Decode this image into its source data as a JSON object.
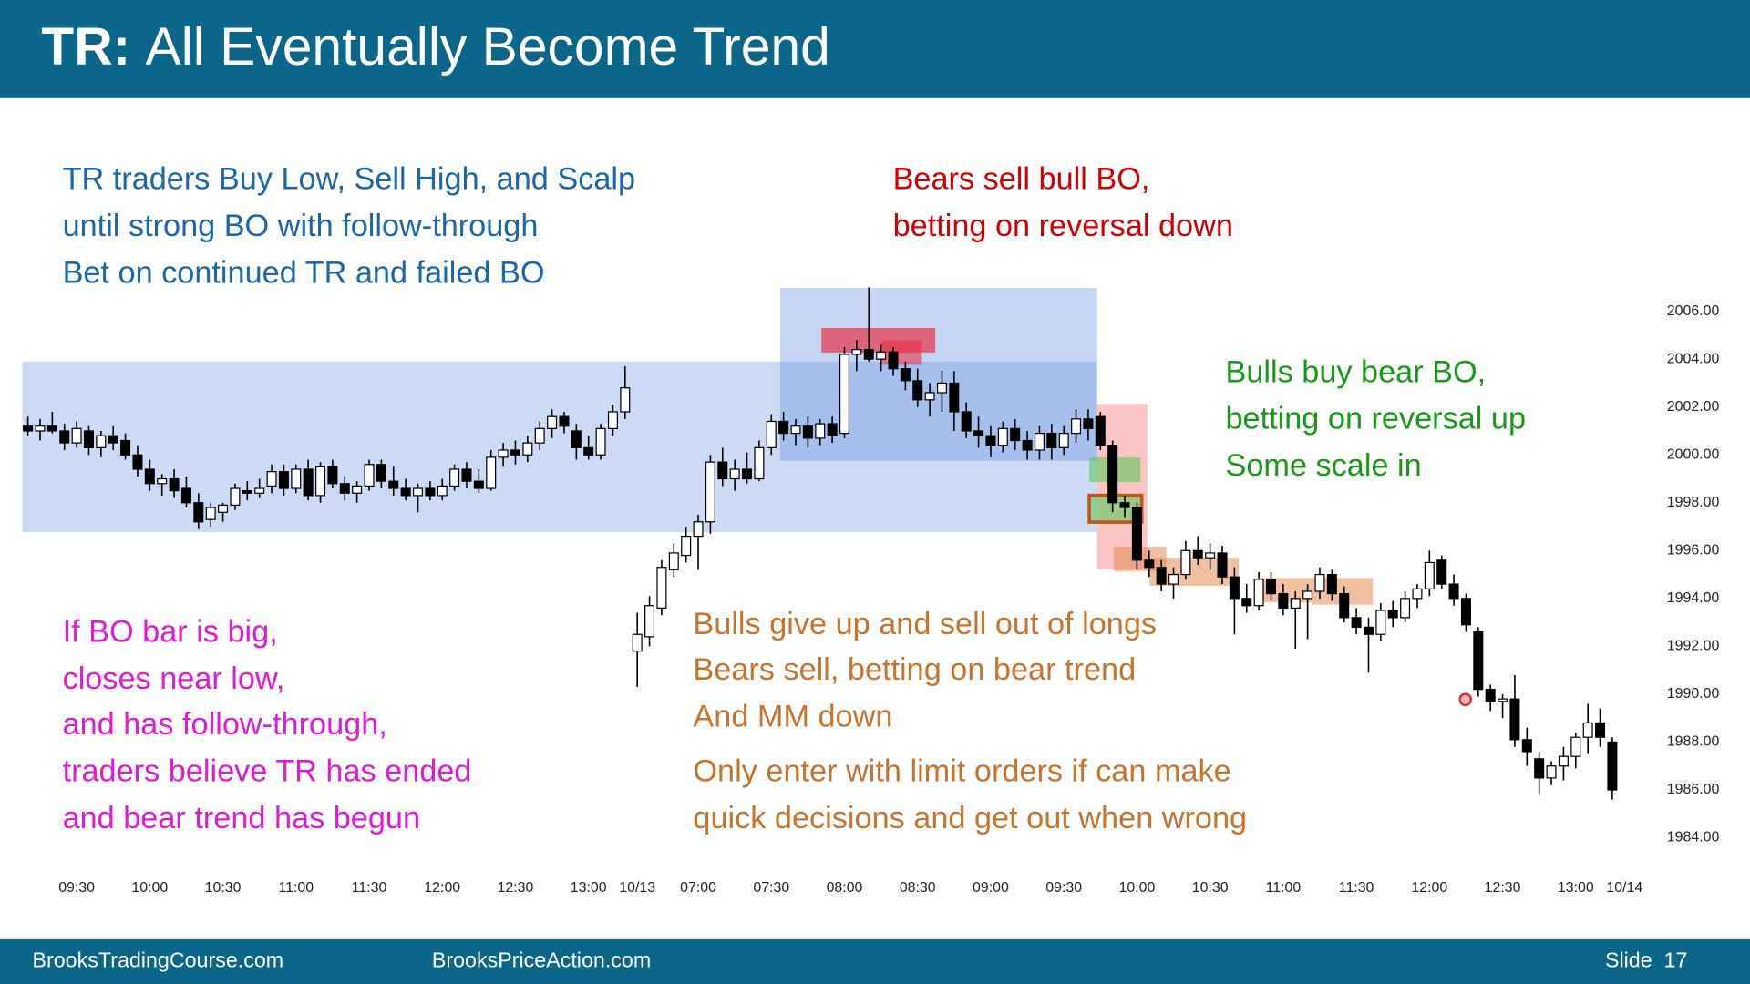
{
  "header": {
    "title_prefix": "TR:",
    "title": "All Eventually Become Trend"
  },
  "annotations": {
    "range_traders": [
      "TR traders Buy Low, Sell High, and Scalp",
      "until strong BO with follow-through",
      "Bet on continued TR and failed BO"
    ],
    "bears": [
      "Bears sell bull BO,",
      "betting on reversal down"
    ],
    "bulls": [
      "Bulls buy bear BO,",
      "betting on reversal up",
      "Some scale in"
    ],
    "big_bo": [
      "If BO bar is big,",
      "closes near low,",
      "and has follow-through,",
      "traders believe TR has ended",
      "and bear trend has begun"
    ],
    "bulls_give_up": [
      "Bulls give up and sell out of longs",
      "Bears sell, betting on bear trend",
      "And MM down"
    ],
    "limit_orders": [
      "Only enter with limit orders if can make",
      "quick decisions and get out when wrong"
    ]
  },
  "chart_data": {
    "type": "candlestick",
    "categories": [
      null,
      null,
      null,
      null,
      "09:30",
      null,
      null,
      null,
      null,
      null,
      "10:00",
      null,
      null,
      null,
      null,
      null,
      "10:30",
      null,
      null,
      null,
      null,
      null,
      "11:00",
      null,
      null,
      null,
      null,
      null,
      "11:30",
      null,
      null,
      null,
      null,
      null,
      "12:00",
      null,
      null,
      null,
      null,
      null,
      "12:30",
      null,
      null,
      null,
      null,
      null,
      "13:00",
      null,
      null,
      null,
      "10/13",
      null,
      null,
      null,
      null,
      "07:00",
      null,
      null,
      null,
      null,
      null,
      "07:30",
      null,
      null,
      null,
      null,
      null,
      "08:00",
      null,
      null,
      null,
      null,
      null,
      "08:30",
      null,
      null,
      null,
      null,
      null,
      "09:00",
      null,
      null,
      null,
      null,
      null,
      "09:30",
      null,
      null,
      null,
      null,
      null,
      "10:00",
      null,
      null,
      null,
      null,
      null,
      "10:30",
      null,
      null,
      null,
      null,
      null,
      "11:00",
      null,
      null,
      null,
      null,
      null,
      "11:30",
      null,
      null,
      null,
      null,
      null,
      "12:00",
      null,
      null,
      null,
      null,
      null,
      "12:30",
      null,
      null,
      null,
      null,
      null,
      "13:00",
      null,
      null,
      null,
      "10/14"
    ],
    "ohlc": [
      [
        2001.2,
        2001.6,
        2000.8,
        2001.0
      ],
      [
        2001.0,
        2001.5,
        2000.6,
        2001.2
      ],
      [
        2001.2,
        2001.8,
        2000.9,
        2001.0
      ],
      [
        2001.0,
        2001.3,
        2000.2,
        2000.5
      ],
      [
        2000.5,
        2001.4,
        2000.3,
        2001.1
      ],
      [
        2001.0,
        2001.2,
        2000.0,
        2000.3
      ],
      [
        2000.3,
        2001.0,
        1999.9,
        2000.8
      ],
      [
        2000.8,
        2001.2,
        2000.2,
        2000.5
      ],
      [
        2000.6,
        2000.9,
        1999.8,
        2000.0
      ],
      [
        2000.0,
        2000.4,
        1999.1,
        1999.4
      ],
      [
        1999.4,
        1999.8,
        1998.5,
        1998.8
      ],
      [
        1998.8,
        1999.2,
        1998.3,
        1999.0
      ],
      [
        1999.0,
        1999.4,
        1998.2,
        1998.5
      ],
      [
        1998.6,
        1999.1,
        1997.8,
        1998.0
      ],
      [
        1998.0,
        1998.4,
        1996.9,
        1997.2
      ],
      [
        1997.3,
        1998.0,
        1997.0,
        1997.8
      ],
      [
        1997.6,
        1998.0,
        1997.2,
        1997.9
      ],
      [
        1997.9,
        1998.8,
        1997.7,
        1998.6
      ],
      [
        1998.5,
        1998.9,
        1998.1,
        1998.4
      ],
      [
        1998.4,
        1999.0,
        1998.2,
        1998.6
      ],
      [
        1998.7,
        1999.6,
        1998.4,
        1999.3
      ],
      [
        1999.3,
        1999.6,
        1998.3,
        1998.6
      ],
      [
        1998.6,
        1999.6,
        1998.4,
        1999.4
      ],
      [
        1999.4,
        1999.8,
        1998.1,
        1998.3
      ],
      [
        1998.3,
        1999.7,
        1998.0,
        1999.5
      ],
      [
        1999.5,
        1999.8,
        1998.6,
        1998.8
      ],
      [
        1998.8,
        1999.1,
        1998.1,
        1998.4
      ],
      [
        1998.4,
        1998.9,
        1998.0,
        1998.7
      ],
      [
        1998.7,
        1999.8,
        1998.5,
        1999.6
      ],
      [
        1999.6,
        1999.8,
        1998.6,
        1998.9
      ],
      [
        1998.9,
        1999.5,
        1998.3,
        1998.6
      ],
      [
        1998.6,
        1999.0,
        1998.1,
        1998.3
      ],
      [
        1998.3,
        1998.8,
        1997.6,
        1998.6
      ],
      [
        1998.6,
        1998.9,
        1998.1,
        1998.3
      ],
      [
        1998.3,
        1999.0,
        1998.1,
        1998.7
      ],
      [
        1998.7,
        1999.6,
        1998.5,
        1999.4
      ],
      [
        1999.4,
        1999.7,
        1998.6,
        1998.9
      ],
      [
        1998.9,
        1999.4,
        1998.4,
        1998.6
      ],
      [
        1998.6,
        2000.2,
        1998.5,
        1999.9
      ],
      [
        1999.9,
        2000.5,
        1999.5,
        2000.2
      ],
      [
        2000.2,
        2000.6,
        1999.6,
        2000.0
      ],
      [
        2000.0,
        2000.8,
        1999.7,
        2000.5
      ],
      [
        2000.5,
        2001.4,
        2000.2,
        2001.1
      ],
      [
        2001.1,
        2001.9,
        2000.7,
        2001.6
      ],
      [
        2001.6,
        2001.8,
        2000.9,
        2001.2
      ],
      [
        2001.0,
        2001.3,
        1999.8,
        2000.3
      ],
      [
        2000.3,
        2000.8,
        1999.8,
        2000.0
      ],
      [
        2000.0,
        2001.3,
        1999.8,
        2001.1
      ],
      [
        2001.1,
        2002.1,
        2000.8,
        2001.8
      ],
      [
        2001.8,
        2003.7,
        2001.5,
        2002.8
      ],
      [
        1991.8,
        1993.4,
        1990.3,
        1992.5
      ],
      [
        1992.4,
        1994.1,
        1992.0,
        1993.7
      ],
      [
        1993.6,
        1995.6,
        1993.3,
        1995.3
      ],
      [
        1995.2,
        1996.3,
        1994.9,
        1995.9
      ],
      [
        1995.8,
        1997.0,
        1995.5,
        1996.6
      ],
      [
        1996.6,
        1997.5,
        1995.2,
        1997.2
      ],
      [
        1997.2,
        2000.0,
        1996.7,
        1999.7
      ],
      [
        1999.7,
        2000.3,
        1998.7,
        1999.0
      ],
      [
        1999.0,
        1999.8,
        1998.5,
        1999.4
      ],
      [
        1999.4,
        2000.1,
        1998.8,
        1999.0
      ],
      [
        1999.0,
        2000.6,
        1998.9,
        2000.3
      ],
      [
        2000.3,
        2001.7,
        2000.0,
        2001.4
      ],
      [
        2001.4,
        2001.8,
        2000.6,
        2000.9
      ],
      [
        2000.9,
        2001.5,
        2000.4,
        2001.2
      ],
      [
        2001.2,
        2001.6,
        2000.3,
        2000.7
      ],
      [
        2000.7,
        2001.5,
        2000.4,
        2001.3
      ],
      [
        2001.3,
        2001.6,
        2000.5,
        2000.8
      ],
      [
        2000.9,
        2004.5,
        2000.7,
        2004.2
      ],
      [
        2004.2,
        2004.8,
        2003.5,
        2004.4
      ],
      [
        2004.4,
        2007.0,
        2003.9,
        2004.0
      ],
      [
        2004.0,
        2004.6,
        2003.5,
        2004.3
      ],
      [
        2004.3,
        2004.5,
        2003.3,
        2003.6
      ],
      [
        2003.6,
        2003.9,
        2002.7,
        2003.1
      ],
      [
        2003.1,
        2003.6,
        2002.0,
        2002.3
      ],
      [
        2002.3,
        2003.0,
        2001.6,
        2002.6
      ],
      [
        2002.6,
        2003.5,
        2001.8,
        2003.0
      ],
      [
        2003.0,
        2003.5,
        2001.0,
        2001.8
      ],
      [
        2001.8,
        2002.2,
        2000.7,
        2001.0
      ],
      [
        2001.0,
        2001.6,
        2000.3,
        2000.8
      ],
      [
        2000.8,
        2001.2,
        1999.9,
        2000.4
      ],
      [
        2000.4,
        2001.4,
        2000.1,
        2001.1
      ],
      [
        2001.1,
        2001.5,
        2000.2,
        2000.6
      ],
      [
        2000.6,
        2001.0,
        1999.8,
        2000.2
      ],
      [
        2000.2,
        2001.2,
        1999.8,
        2000.9
      ],
      [
        2000.9,
        2001.3,
        1999.8,
        2000.3
      ],
      [
        2000.3,
        2001.2,
        2000.0,
        2000.9
      ],
      [
        2000.9,
        2001.9,
        2000.5,
        2001.5
      ],
      [
        2001.5,
        2001.9,
        2000.6,
        2001.1
      ],
      [
        2001.6,
        2001.8,
        2000.2,
        2000.4
      ],
      [
        2000.4,
        2000.6,
        1997.6,
        1998.0
      ],
      [
        1998.0,
        1998.3,
        1997.4,
        1997.8
      ],
      [
        1997.8,
        1998.0,
        1995.2,
        1995.6
      ],
      [
        1995.6,
        1996.0,
        1994.9,
        1995.3
      ],
      [
        1995.3,
        1995.6,
        1994.3,
        1994.6
      ],
      [
        1994.6,
        1995.3,
        1994.0,
        1995.0
      ],
      [
        1995.0,
        1996.4,
        1994.8,
        1996.0
      ],
      [
        1996.0,
        1996.6,
        1995.4,
        1995.7
      ],
      [
        1995.7,
        1996.3,
        1995.2,
        1995.9
      ],
      [
        1995.9,
        1996.2,
        1994.6,
        1994.9
      ],
      [
        1994.9,
        1995.3,
        1992.5,
        1994.0
      ],
      [
        1994.0,
        1994.6,
        1993.4,
        1993.7
      ],
      [
        1993.7,
        1995.1,
        1993.5,
        1994.8
      ],
      [
        1994.8,
        1995.1,
        1993.9,
        1994.2
      ],
      [
        1994.2,
        1994.6,
        1993.3,
        1993.6
      ],
      [
        1993.6,
        1994.3,
        1991.9,
        1994.0
      ],
      [
        1994.0,
        1994.6,
        1992.3,
        1994.3
      ],
      [
        1994.3,
        1995.3,
        1994.0,
        1995.0
      ],
      [
        1995.0,
        1995.2,
        1993.9,
        1994.2
      ],
      [
        1994.2,
        1994.5,
        1993.0,
        1993.2
      ],
      [
        1993.2,
        1993.6,
        1992.5,
        1992.8
      ],
      [
        1992.8,
        1993.2,
        1990.9,
        1992.5
      ],
      [
        1992.5,
        1993.8,
        1992.2,
        1993.5
      ],
      [
        1993.5,
        1993.9,
        1992.8,
        1993.2
      ],
      [
        1993.2,
        1994.3,
        1993.0,
        1994.0
      ],
      [
        1994.0,
        1994.6,
        1993.6,
        1994.4
      ],
      [
        1994.4,
        1996.0,
        1994.1,
        1995.5
      ],
      [
        1995.6,
        1995.8,
        1994.4,
        1994.6
      ],
      [
        1994.6,
        1995.0,
        1993.7,
        1994.0
      ],
      [
        1994.0,
        1994.2,
        1992.6,
        1992.9
      ],
      [
        1992.6,
        1992.8,
        1989.9,
        1990.2
      ],
      [
        1990.2,
        1990.4,
        1989.3,
        1989.7
      ],
      [
        1989.7,
        1990.0,
        1989.0,
        1989.8
      ],
      [
        1989.8,
        1990.8,
        1987.8,
        1988.1
      ],
      [
        1988.1,
        1988.6,
        1987.0,
        1987.6
      ],
      [
        1987.3,
        1987.6,
        1985.8,
        1986.5
      ],
      [
        1986.5,
        1987.2,
        1986.2,
        1987.0
      ],
      [
        1987.0,
        1987.8,
        1986.4,
        1987.4
      ],
      [
        1987.4,
        1988.4,
        1986.9,
        1988.2
      ],
      [
        1988.2,
        1989.6,
        1987.5,
        1988.8
      ],
      [
        1988.8,
        1989.4,
        1987.8,
        1988.2
      ],
      [
        1988.0,
        1988.2,
        1985.6,
        1986.0
      ],
      null
    ],
    "up_color": "#ffffff",
    "down_color": "#000000",
    "wick_color": "#000000",
    "ylim": [
      1983,
      2008
    ],
    "yticks": [
      {
        "value": 1984,
        "label": "1984.00"
      },
      {
        "value": 1986,
        "label": "1986.00"
      },
      {
        "value": 1988,
        "label": "1988.00"
      },
      {
        "value": 1990,
        "label": "1990.00"
      },
      {
        "value": 1992,
        "label": "1992.00"
      },
      {
        "value": 1994,
        "label": "1994.00"
      },
      {
        "value": 1996,
        "label": "1996.00"
      },
      {
        "value": 1998,
        "label": "1998.00"
      },
      {
        "value": 2000,
        "label": "2000.00"
      },
      {
        "value": 2002,
        "label": "2002.00"
      },
      {
        "value": 2004,
        "label": "2004.00"
      },
      {
        "value": 2006,
        "label": "2006.00"
      }
    ],
    "grid": false
  },
  "footer": {
    "left": "BrooksTradingCourse.com",
    "center": "BrooksPriceAction.com",
    "slide": "Slide  17"
  }
}
